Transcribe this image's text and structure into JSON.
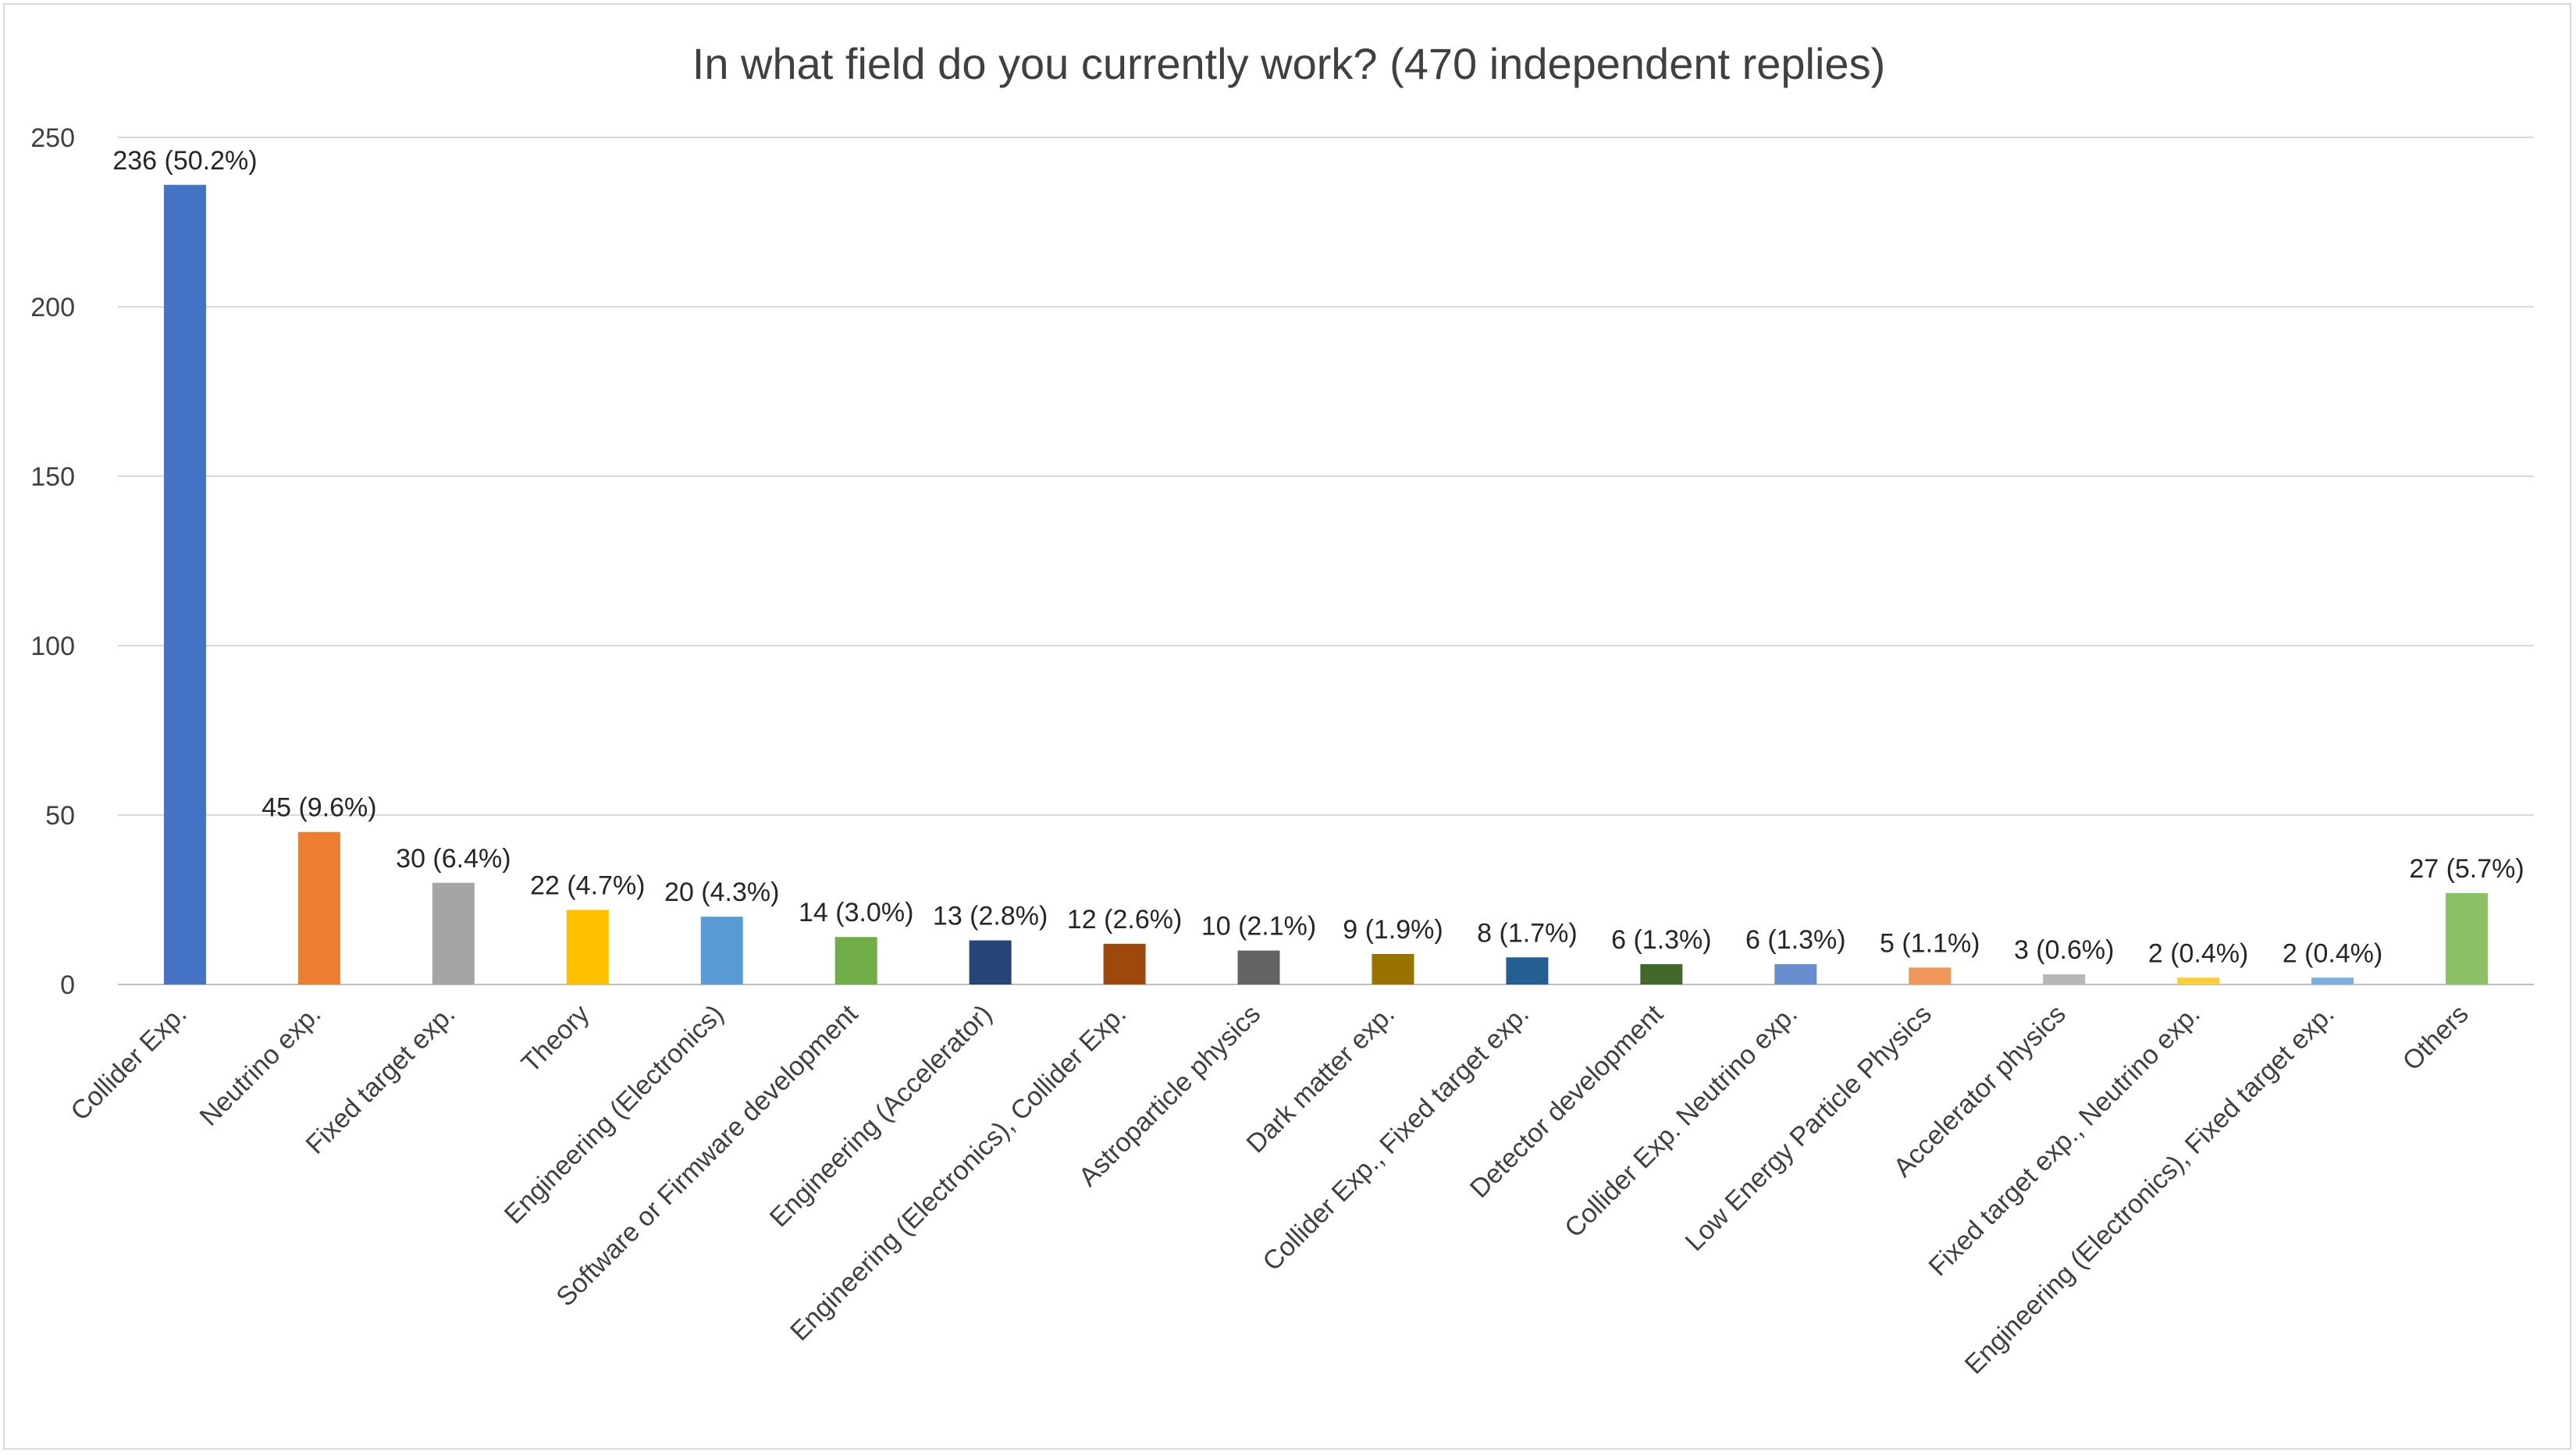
{
  "chart_data": {
    "type": "bar",
    "title": "In what field do you currently work? (470 independent replies)",
    "xlabel": "",
    "ylabel": "",
    "ylim": [
      0,
      250
    ],
    "yticks": [
      0,
      50,
      100,
      150,
      200,
      250
    ],
    "grid": true,
    "legend": "none",
    "categories": [
      "Collider Exp.",
      "Neutrino exp.",
      "Fixed target exp.",
      "Theory",
      "Engineering (Electronics)",
      "Software or Firmware development",
      "Engineering (Accelerator)",
      "Engineering (Electronics), Collider Exp.",
      "Astroparticle physics",
      "Dark matter exp.",
      "Collider Exp., Fixed target exp.",
      "Detector development",
      "Collider Exp. Neutrino exp.",
      "Low Energy Particle Physics",
      "Accelerator physics",
      "Fixed target exp., Neutrino exp.",
      "Engineering (Electronics), Fixed target exp.",
      "Others"
    ],
    "values": [
      236,
      45,
      30,
      22,
      20,
      14,
      13,
      12,
      10,
      9,
      8,
      6,
      6,
      5,
      3,
      2,
      2,
      27
    ],
    "data_labels": [
      "236 (50.2%)",
      "45 (9.6%)",
      "30 (6.4%)",
      "22 (4.7%)",
      "20 (4.3%)",
      "14 (3.0%)",
      "13 (2.8%)",
      "12 (2.6%)",
      "10 (2.1%)",
      "9 (1.9%)",
      "8 (1.7%)",
      "6 (1.3%)",
      "6 (1.3%)",
      "5 (1.1%)",
      "3 (0.6%)",
      "2 (0.4%)",
      "2 (0.4%)",
      "27 (5.7%)"
    ],
    "colors": [
      "#4472C4",
      "#ED7D31",
      "#A5A5A5",
      "#FFC000",
      "#5B9BD5",
      "#70AD47",
      "#264478",
      "#9E480E",
      "#636363",
      "#997300",
      "#255E91",
      "#43682B",
      "#698ED0",
      "#F1975A",
      "#B7B7B7",
      "#FFCD33",
      "#7CAFDD",
      "#8CC168"
    ]
  }
}
